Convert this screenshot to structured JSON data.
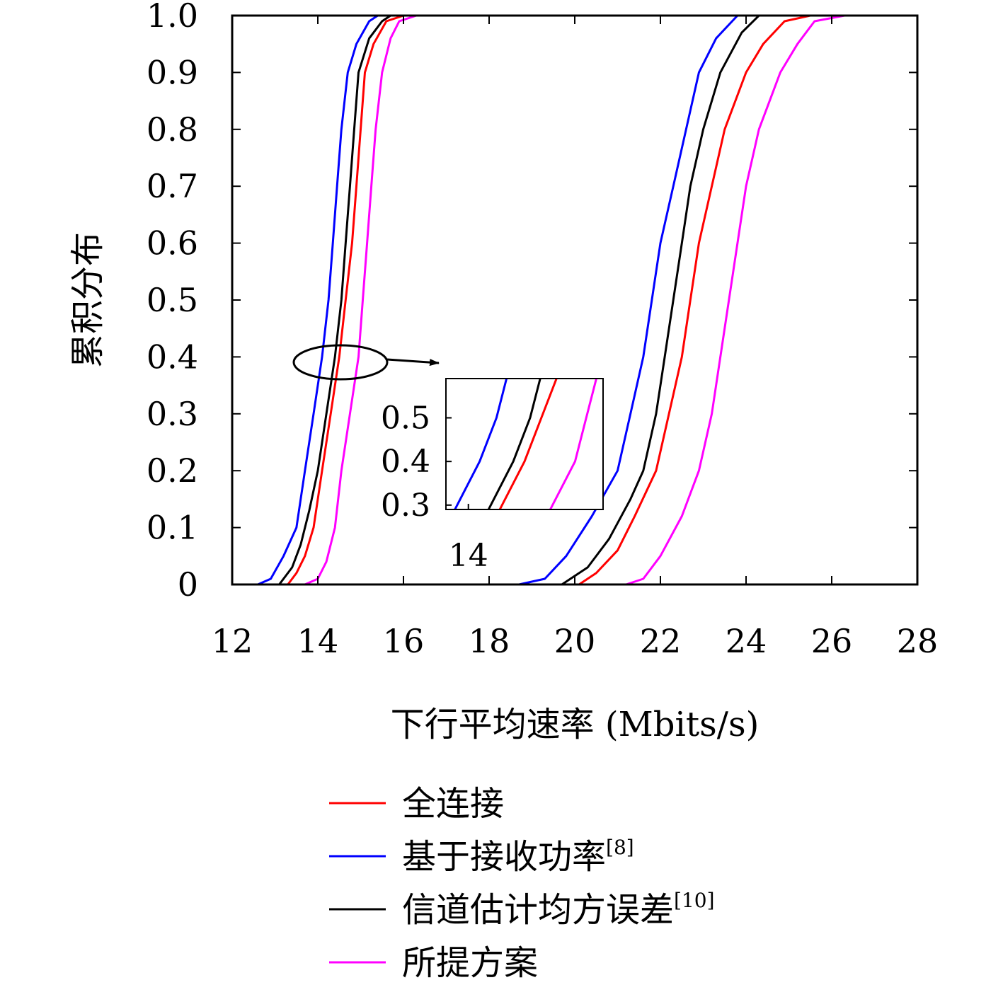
{
  "chart_data": {
    "type": "line",
    "xlabel": "下行平均速率 (Mbits/s)",
    "ylabel": "累积分布",
    "xlim": [
      12,
      28
    ],
    "ylim": [
      0,
      1
    ],
    "xticks": [
      "12",
      "14",
      "16",
      "18",
      "20",
      "22",
      "24",
      "26",
      "28"
    ],
    "yticks": [
      "0",
      "0.1",
      "0.2",
      "0.3",
      "0.4",
      "0.5",
      "0.6",
      "0.7",
      "0.8",
      "0.9",
      "1.0"
    ],
    "grid": false,
    "legend_position": "below",
    "series": [
      {
        "name": "全连接",
        "sup": "",
        "color": "#ff0000",
        "groups": [
          [
            [
              13.3,
              0
            ],
            [
              13.5,
              0.02
            ],
            [
              13.7,
              0.05
            ],
            [
              13.9,
              0.1
            ],
            [
              14.1,
              0.2
            ],
            [
              14.3,
              0.3
            ],
            [
              14.5,
              0.4
            ],
            [
              14.65,
              0.5
            ],
            [
              14.8,
              0.6
            ],
            [
              14.9,
              0.7
            ],
            [
              15.0,
              0.8
            ],
            [
              15.1,
              0.9
            ],
            [
              15.3,
              0.95
            ],
            [
              15.6,
              0.99
            ],
            [
              16.0,
              1
            ]
          ],
          [
            [
              20.1,
              0
            ],
            [
              20.5,
              0.02
            ],
            [
              21.0,
              0.06
            ],
            [
              21.4,
              0.12
            ],
            [
              21.9,
              0.2
            ],
            [
              22.2,
              0.3
            ],
            [
              22.5,
              0.4
            ],
            [
              22.7,
              0.5
            ],
            [
              22.9,
              0.6
            ],
            [
              23.2,
              0.7
            ],
            [
              23.5,
              0.8
            ],
            [
              24.0,
              0.9
            ],
            [
              24.4,
              0.95
            ],
            [
              24.9,
              0.99
            ],
            [
              25.5,
              1
            ]
          ]
        ]
      },
      {
        "name": "基于接收功率",
        "sup": "[8]",
        "color": "#0000ff",
        "groups": [
          [
            [
              12.6,
              0
            ],
            [
              12.9,
              0.01
            ],
            [
              13.2,
              0.05
            ],
            [
              13.5,
              0.1
            ],
            [
              13.7,
              0.2
            ],
            [
              13.9,
              0.3
            ],
            [
              14.1,
              0.4
            ],
            [
              14.25,
              0.5
            ],
            [
              14.35,
              0.6
            ],
            [
              14.45,
              0.7
            ],
            [
              14.55,
              0.8
            ],
            [
              14.7,
              0.9
            ],
            [
              14.9,
              0.95
            ],
            [
              15.2,
              0.99
            ],
            [
              15.4,
              1
            ]
          ],
          [
            [
              18.7,
              0
            ],
            [
              19.3,
              0.01
            ],
            [
              19.8,
              0.05
            ],
            [
              20.4,
              0.12
            ],
            [
              21.0,
              0.2
            ],
            [
              21.3,
              0.3
            ],
            [
              21.6,
              0.4
            ],
            [
              21.8,
              0.5
            ],
            [
              22.0,
              0.6
            ],
            [
              22.3,
              0.7
            ],
            [
              22.6,
              0.8
            ],
            [
              22.9,
              0.9
            ],
            [
              23.3,
              0.96
            ],
            [
              23.8,
              1
            ]
          ]
        ]
      },
      {
        "name": "信道估计均方误差",
        "sup": "[10]",
        "color": "#000000",
        "groups": [
          [
            [
              13.1,
              0
            ],
            [
              13.4,
              0.03
            ],
            [
              13.6,
              0.07
            ],
            [
              13.8,
              0.13
            ],
            [
              14.0,
              0.2
            ],
            [
              14.2,
              0.3
            ],
            [
              14.4,
              0.4
            ],
            [
              14.55,
              0.5
            ],
            [
              14.65,
              0.6
            ],
            [
              14.75,
              0.7
            ],
            [
              14.85,
              0.8
            ],
            [
              14.95,
              0.9
            ],
            [
              15.2,
              0.96
            ],
            [
              15.5,
              0.99
            ],
            [
              15.7,
              1
            ]
          ],
          [
            [
              19.7,
              0
            ],
            [
              20.3,
              0.03
            ],
            [
              20.8,
              0.08
            ],
            [
              21.3,
              0.15
            ],
            [
              21.6,
              0.2
            ],
            [
              21.9,
              0.3
            ],
            [
              22.1,
              0.4
            ],
            [
              22.3,
              0.5
            ],
            [
              22.5,
              0.6
            ],
            [
              22.7,
              0.7
            ],
            [
              23.0,
              0.8
            ],
            [
              23.4,
              0.9
            ],
            [
              23.9,
              0.97
            ],
            [
              24.3,
              1
            ]
          ]
        ]
      },
      {
        "name": "所提方案",
        "sup": "",
        "color": "#ff00ff",
        "groups": [
          [
            [
              13.7,
              0
            ],
            [
              14.0,
              0.01
            ],
            [
              14.2,
              0.04
            ],
            [
              14.4,
              0.1
            ],
            [
              14.55,
              0.2
            ],
            [
              14.75,
              0.3
            ],
            [
              14.95,
              0.4
            ],
            [
              15.05,
              0.5
            ],
            [
              15.15,
              0.6
            ],
            [
              15.25,
              0.7
            ],
            [
              15.35,
              0.8
            ],
            [
              15.5,
              0.9
            ],
            [
              15.7,
              0.96
            ],
            [
              15.9,
              0.99
            ],
            [
              16.3,
              1
            ]
          ],
          [
            [
              21.2,
              0
            ],
            [
              21.6,
              0.01
            ],
            [
              22.0,
              0.05
            ],
            [
              22.5,
              0.12
            ],
            [
              22.9,
              0.2
            ],
            [
              23.2,
              0.3
            ],
            [
              23.4,
              0.4
            ],
            [
              23.6,
              0.5
            ],
            [
              23.8,
              0.6
            ],
            [
              24.0,
              0.7
            ],
            [
              24.3,
              0.8
            ],
            [
              24.8,
              0.9
            ],
            [
              25.2,
              0.95
            ],
            [
              25.6,
              0.99
            ],
            [
              26.3,
              1
            ]
          ]
        ]
      }
    ],
    "inset": {
      "xlim": [
        13.8,
        15.2
      ],
      "ylim": [
        0.29,
        0.59
      ],
      "xticks": [
        "14"
      ],
      "yticks": [
        "0.3",
        "0.4",
        "0.5"
      ]
    }
  }
}
